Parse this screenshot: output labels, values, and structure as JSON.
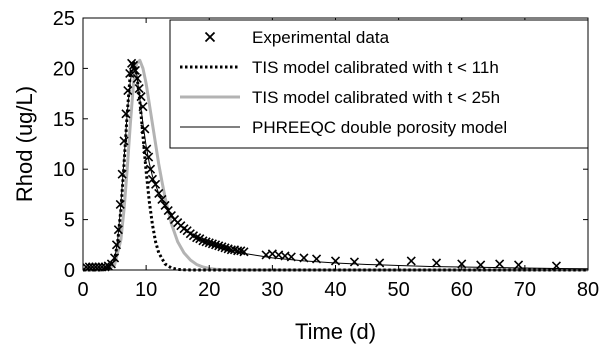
{
  "chart_data": {
    "type": "line",
    "xlabel": "Time (d)",
    "ylabel": "Rhod (ug/L)",
    "xlim": [
      0,
      80
    ],
    "ylim": [
      0,
      25
    ],
    "xticks": [
      0,
      10,
      20,
      30,
      40,
      50,
      60,
      70,
      80
    ],
    "yticks": [
      0,
      5,
      10,
      15,
      20,
      25
    ],
    "grid": false,
    "legend_position": "top-right",
    "series": [
      {
        "name": "Experimental data",
        "style": "markers-x",
        "color": "#000000",
        "x": [
          0.5,
          1,
          1.5,
          2,
          2.5,
          3,
          3.5,
          4,
          4.5,
          5,
          5.3,
          5.6,
          5.9,
          6.2,
          6.5,
          6.8,
          7.1,
          7.4,
          7.7,
          8.0,
          8.3,
          8.6,
          8.9,
          9.2,
          9.5,
          9.8,
          10.1,
          10.4,
          10.7,
          11,
          11.5,
          12,
          12.5,
          13,
          13.5,
          14,
          14.5,
          15,
          15.5,
          16,
          16.5,
          17,
          17.5,
          18,
          18.5,
          19,
          19.5,
          20,
          20.5,
          21,
          21.5,
          22,
          22.5,
          23,
          23.5,
          24,
          24.5,
          25,
          25.5,
          29,
          30,
          31,
          32,
          33,
          35,
          37,
          40,
          43,
          47,
          52,
          56,
          60,
          63,
          66,
          69,
          75
        ],
        "y": [
          0.3,
          0.3,
          0.3,
          0.3,
          0.3,
          0.3,
          0.3,
          0.4,
          0.6,
          1.2,
          2.5,
          4.0,
          6.5,
          9.5,
          12.8,
          15.5,
          17.8,
          19.5,
          20.5,
          20.3,
          19.8,
          19.0,
          18.0,
          17.2,
          16.2,
          14.0,
          12.0,
          11.2,
          10.0,
          9.0,
          8.5,
          7.6,
          7.0,
          6.4,
          5.9,
          5.4,
          5.0,
          4.7,
          4.4,
          4.1,
          3.9,
          3.6,
          3.4,
          3.2,
          3.1,
          2.9,
          2.8,
          2.7,
          2.6,
          2.5,
          2.4,
          2.3,
          2.2,
          2.1,
          2.0,
          2.0,
          1.9,
          1.9,
          1.8,
          1.5,
          1.6,
          1.5,
          1.4,
          1.3,
          1.2,
          1.1,
          0.9,
          0.8,
          0.7,
          0.9,
          0.7,
          0.6,
          0.5,
          0.6,
          0.5,
          0.4
        ]
      },
      {
        "name": "TIS model calibrated with t < 11h",
        "style": "dotted",
        "color": "#000000",
        "x": [
          0,
          3,
          4,
          5,
          5.5,
          6,
          6.5,
          7,
          7.5,
          8,
          8.5,
          9,
          9.5,
          10,
          10.5,
          11,
          11.5,
          12,
          13,
          14,
          15,
          16,
          17,
          18,
          20,
          25,
          40,
          60,
          80
        ],
        "y": [
          0,
          0,
          0.1,
          1.0,
          2.8,
          6.0,
          10.5,
          15.5,
          19.5,
          20.6,
          19.5,
          16.8,
          13.3,
          9.8,
          6.8,
          4.5,
          2.8,
          1.7,
          0.6,
          0.2,
          0.06,
          0.02,
          0,
          0,
          0,
          0,
          0,
          0,
          0
        ]
      },
      {
        "name": "TIS model calibrated with t < 25h",
        "style": "solid-thick",
        "color": "#b3b3b3",
        "x": [
          0,
          3,
          4,
          5,
          6,
          6.5,
          7,
          7.5,
          8,
          8.5,
          9,
          9.5,
          10,
          10.5,
          11,
          11.5,
          12,
          12.5,
          13,
          14,
          15,
          16,
          17,
          18,
          19,
          20,
          21,
          22,
          24,
          26,
          30,
          40,
          60,
          80
        ],
        "y": [
          0,
          0,
          0.1,
          0.5,
          3.0,
          6.0,
          10.0,
          14.5,
          18.5,
          20.5,
          20.8,
          20.0,
          18.5,
          16.5,
          14.5,
          12.5,
          10.5,
          8.8,
          7.2,
          4.6,
          2.8,
          1.7,
          1.0,
          0.55,
          0.3,
          0.15,
          0.08,
          0.04,
          0.01,
          0,
          0,
          0,
          0,
          0
        ]
      },
      {
        "name": "PHREEQC double porosity model",
        "style": "solid-thin",
        "color": "#000000",
        "x": [
          0,
          3,
          4,
          5,
          5.5,
          6,
          6.5,
          7,
          7.5,
          8,
          8.5,
          9,
          9.5,
          10,
          10.5,
          11,
          12,
          13,
          14,
          15,
          16,
          17,
          18,
          19,
          20,
          22,
          24,
          26,
          28,
          30,
          35,
          40,
          45,
          50,
          55,
          60,
          65,
          70,
          75,
          80
        ],
        "y": [
          0,
          0,
          0.1,
          1.0,
          3.0,
          6.5,
          11.0,
          15.5,
          18.8,
          20.3,
          19.5,
          17.0,
          14.5,
          12.3,
          10.6,
          9.3,
          7.6,
          6.4,
          5.5,
          4.7,
          4.1,
          3.6,
          3.2,
          2.9,
          2.6,
          2.2,
          1.9,
          1.6,
          1.4,
          1.2,
          0.9,
          0.7,
          0.55,
          0.45,
          0.35,
          0.3,
          0.25,
          0.2,
          0.15,
          0.12
        ]
      }
    ]
  }
}
